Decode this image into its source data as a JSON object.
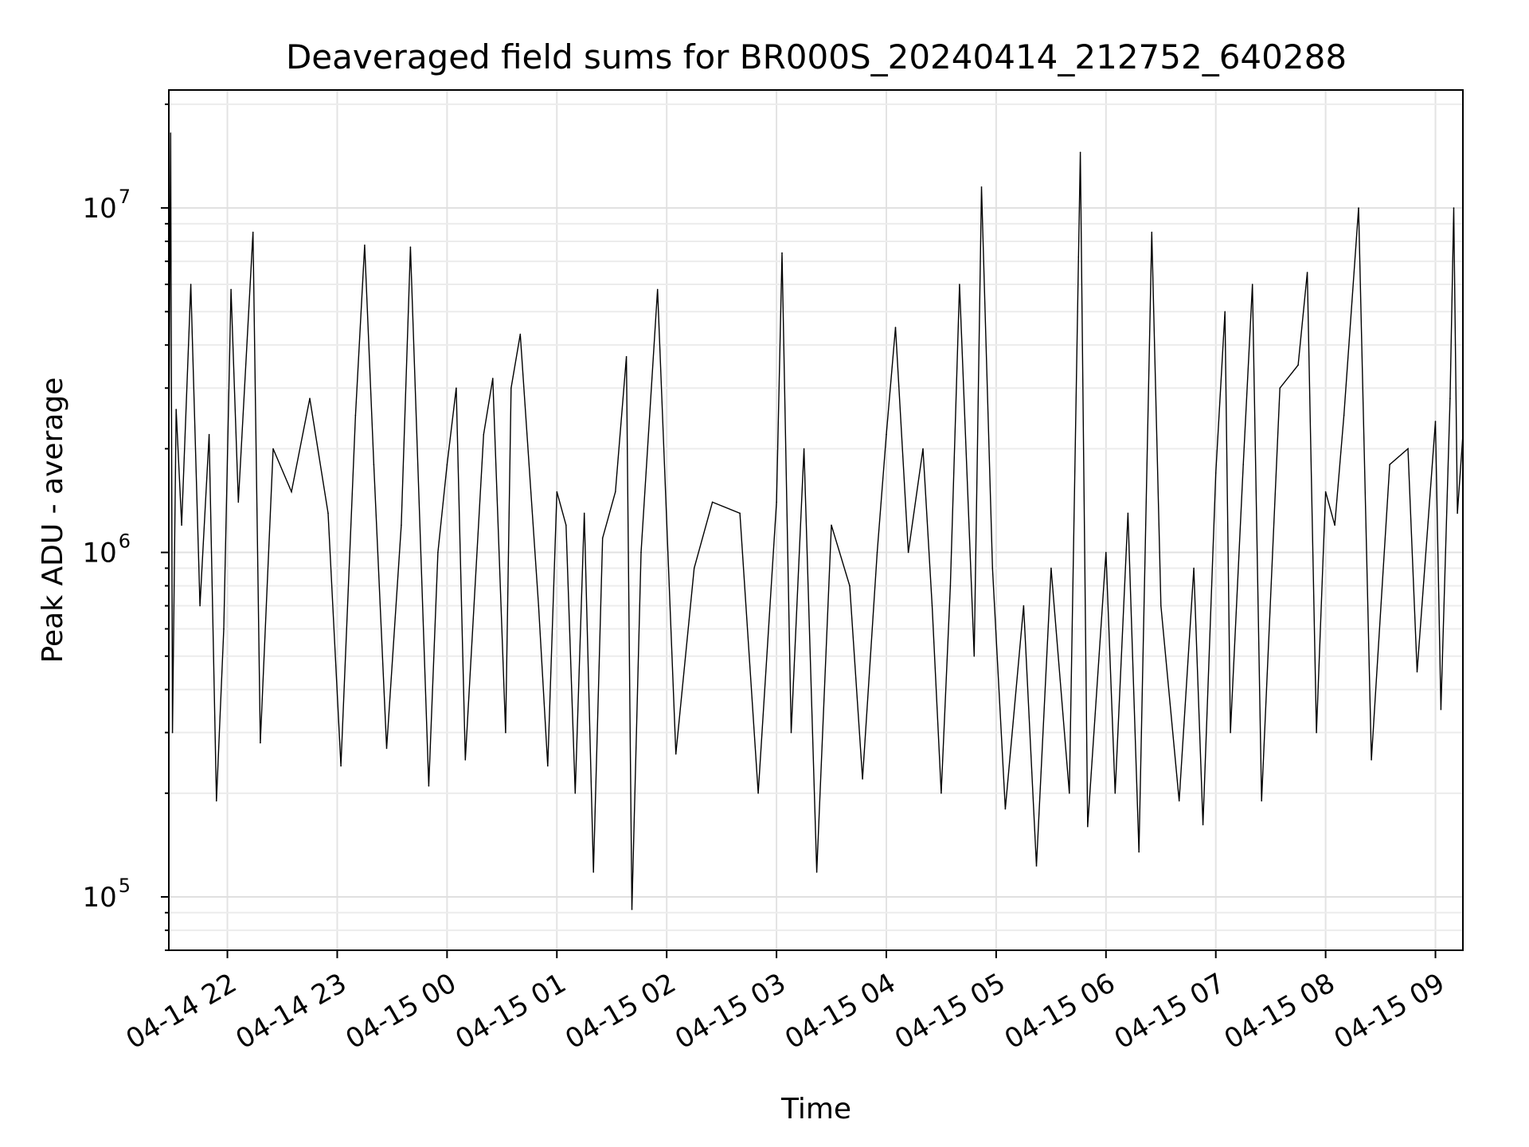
{
  "chart_data": {
    "type": "line",
    "title": "Deaveraged field sums for BR000S_20240414_212752_640288",
    "xlabel": "Time",
    "ylabel": "Peak ADU - average",
    "yscale": "log",
    "ylim": [
      70000,
      22000000
    ],
    "xlim": [
      "2024-04-14 21:28",
      "2024-04-15 09:15"
    ],
    "grid": true,
    "line_color": "#000000",
    "x_ticks": [
      {
        "t": "2024-04-14 22:00",
        "label": "04-14 22"
      },
      {
        "t": "2024-04-14 23:00",
        "label": "04-14 23"
      },
      {
        "t": "2024-04-15 00:00",
        "label": "04-15 00"
      },
      {
        "t": "2024-04-15 01:00",
        "label": "04-15 01"
      },
      {
        "t": "2024-04-15 02:00",
        "label": "04-15 02"
      },
      {
        "t": "2024-04-15 03:00",
        "label": "04-15 03"
      },
      {
        "t": "2024-04-15 04:00",
        "label": "04-15 04"
      },
      {
        "t": "2024-04-15 05:00",
        "label": "04-15 05"
      },
      {
        "t": "2024-04-15 06:00",
        "label": "04-15 06"
      },
      {
        "t": "2024-04-15 07:00",
        "label": "04-15 07"
      },
      {
        "t": "2024-04-15 08:00",
        "label": "04-15 08"
      },
      {
        "t": "2024-04-15 09:00",
        "label": "04-15 09"
      }
    ],
    "y_ticks": [
      {
        "value": 100000,
        "base": "10",
        "exp": "5"
      },
      {
        "value": 1000000,
        "base": "10",
        "exp": "6"
      },
      {
        "value": 10000000,
        "base": "10",
        "exp": "7"
      }
    ],
    "series": [
      {
        "points": [
          [
            "2024-04-14 21:28",
            1800000
          ],
          [
            "2024-04-14 21:29",
            16500000
          ],
          [
            "2024-04-14 21:30",
            300000
          ],
          [
            "2024-04-14 21:32",
            2600000
          ],
          [
            "2024-04-14 21:35",
            1200000
          ],
          [
            "2024-04-14 21:40",
            6000000
          ],
          [
            "2024-04-14 21:45",
            700000
          ],
          [
            "2024-04-14 21:50",
            2200000
          ],
          [
            "2024-04-14 21:54",
            190000
          ],
          [
            "2024-04-14 21:58",
            600000
          ],
          [
            "2024-04-14 22:02",
            5800000
          ],
          [
            "2024-04-14 22:06",
            1400000
          ],
          [
            "2024-04-14 22:14",
            8500000
          ],
          [
            "2024-04-14 22:18",
            280000
          ],
          [
            "2024-04-14 22:25",
            2000000
          ],
          [
            "2024-04-14 22:35",
            1500000
          ],
          [
            "2024-04-14 22:45",
            2800000
          ],
          [
            "2024-04-14 22:55",
            1300000
          ],
          [
            "2024-04-14 23:02",
            240000
          ],
          [
            "2024-04-14 23:10",
            2500000
          ],
          [
            "2024-04-14 23:15",
            7800000
          ],
          [
            "2024-04-14 23:20",
            1800000
          ],
          [
            "2024-04-14 23:27",
            270000
          ],
          [
            "2024-04-14 23:35",
            1200000
          ],
          [
            "2024-04-14 23:40",
            7700000
          ],
          [
            "2024-04-14 23:50",
            210000
          ],
          [
            "2024-04-14 23:55",
            1000000
          ],
          [
            "2024-04-15 00:00",
            1800000
          ],
          [
            "2024-04-15 00:05",
            3000000
          ],
          [
            "2024-04-15 00:10",
            250000
          ],
          [
            "2024-04-15 00:20",
            2200000
          ],
          [
            "2024-04-15 00:25",
            3200000
          ],
          [
            "2024-04-15 00:32",
            300000
          ],
          [
            "2024-04-15 00:35",
            3000000
          ],
          [
            "2024-04-15 00:40",
            4300000
          ],
          [
            "2024-04-15 00:50",
            700000
          ],
          [
            "2024-04-15 00:55",
            240000
          ],
          [
            "2024-04-15 01:00",
            1500000
          ],
          [
            "2024-04-15 01:05",
            1200000
          ],
          [
            "2024-04-15 01:10",
            200000
          ],
          [
            "2024-04-15 01:15",
            1300000
          ],
          [
            "2024-04-15 01:20",
            118000
          ],
          [
            "2024-04-15 01:25",
            1100000
          ],
          [
            "2024-04-15 01:32",
            1500000
          ],
          [
            "2024-04-15 01:38",
            3700000
          ],
          [
            "2024-04-15 01:41",
            92000
          ],
          [
            "2024-04-15 01:46",
            1000000
          ],
          [
            "2024-04-15 01:55",
            5800000
          ],
          [
            "2024-04-15 02:05",
            260000
          ],
          [
            "2024-04-15 02:15",
            900000
          ],
          [
            "2024-04-15 02:25",
            1400000
          ],
          [
            "2024-04-15 02:40",
            1300000
          ],
          [
            "2024-04-15 02:50",
            200000
          ],
          [
            "2024-04-15 03:00",
            1400000
          ],
          [
            "2024-04-15 03:03",
            7400000
          ],
          [
            "2024-04-15 03:08",
            300000
          ],
          [
            "2024-04-15 03:15",
            2000000
          ],
          [
            "2024-04-15 03:22",
            118000
          ],
          [
            "2024-04-15 03:30",
            1200000
          ],
          [
            "2024-04-15 03:40",
            800000
          ],
          [
            "2024-04-15 03:47",
            220000
          ],
          [
            "2024-04-15 03:55",
            1000000
          ],
          [
            "2024-04-15 04:00",
            2200000
          ],
          [
            "2024-04-15 04:05",
            4500000
          ],
          [
            "2024-04-15 04:12",
            1000000
          ],
          [
            "2024-04-15 04:20",
            2000000
          ],
          [
            "2024-04-15 04:25",
            700000
          ],
          [
            "2024-04-15 04:30",
            200000
          ],
          [
            "2024-04-15 04:35",
            800000
          ],
          [
            "2024-04-15 04:40",
            6000000
          ],
          [
            "2024-04-15 04:48",
            500000
          ],
          [
            "2024-04-15 04:52",
            11500000
          ],
          [
            "2024-04-15 04:58",
            900000
          ],
          [
            "2024-04-15 05:05",
            180000
          ],
          [
            "2024-04-15 05:15",
            700000
          ],
          [
            "2024-04-15 05:22",
            123000
          ],
          [
            "2024-04-15 05:30",
            900000
          ],
          [
            "2024-04-15 05:40",
            200000
          ],
          [
            "2024-04-15 05:45",
            7200000
          ],
          [
            "2024-04-15 05:46",
            14500000
          ],
          [
            "2024-04-15 05:50",
            160000
          ],
          [
            "2024-04-15 06:00",
            1000000
          ],
          [
            "2024-04-15 06:05",
            200000
          ],
          [
            "2024-04-15 06:12",
            1300000
          ],
          [
            "2024-04-15 06:18",
            135000
          ],
          [
            "2024-04-15 06:25",
            8500000
          ],
          [
            "2024-04-15 06:30",
            700000
          ],
          [
            "2024-04-15 06:40",
            190000
          ],
          [
            "2024-04-15 06:48",
            900000
          ],
          [
            "2024-04-15 06:53",
            162000
          ],
          [
            "2024-04-15 07:00",
            1700000
          ],
          [
            "2024-04-15 07:05",
            5000000
          ],
          [
            "2024-04-15 07:08",
            300000
          ],
          [
            "2024-04-15 07:15",
            1800000
          ],
          [
            "2024-04-15 07:20",
            6000000
          ],
          [
            "2024-04-15 07:25",
            190000
          ],
          [
            "2024-04-15 07:35",
            3000000
          ],
          [
            "2024-04-15 07:45",
            3500000
          ],
          [
            "2024-04-15 07:50",
            6500000
          ],
          [
            "2024-04-15 07:55",
            300000
          ],
          [
            "2024-04-15 08:00",
            1500000
          ],
          [
            "2024-04-15 08:05",
            1200000
          ],
          [
            "2024-04-15 08:10",
            2500000
          ],
          [
            "2024-04-15 08:18",
            10000000
          ],
          [
            "2024-04-15 08:25",
            250000
          ],
          [
            "2024-04-15 08:35",
            1800000
          ],
          [
            "2024-04-15 08:45",
            2000000
          ],
          [
            "2024-04-15 08:50",
            450000
          ],
          [
            "2024-04-15 09:00",
            2400000
          ],
          [
            "2024-04-15 09:03",
            350000
          ],
          [
            "2024-04-15 09:08",
            2800000
          ],
          [
            "2024-04-15 09:10",
            10000000
          ],
          [
            "2024-04-15 09:12",
            1300000
          ],
          [
            "2024-04-15 09:15",
            2200000
          ]
        ]
      }
    ]
  }
}
